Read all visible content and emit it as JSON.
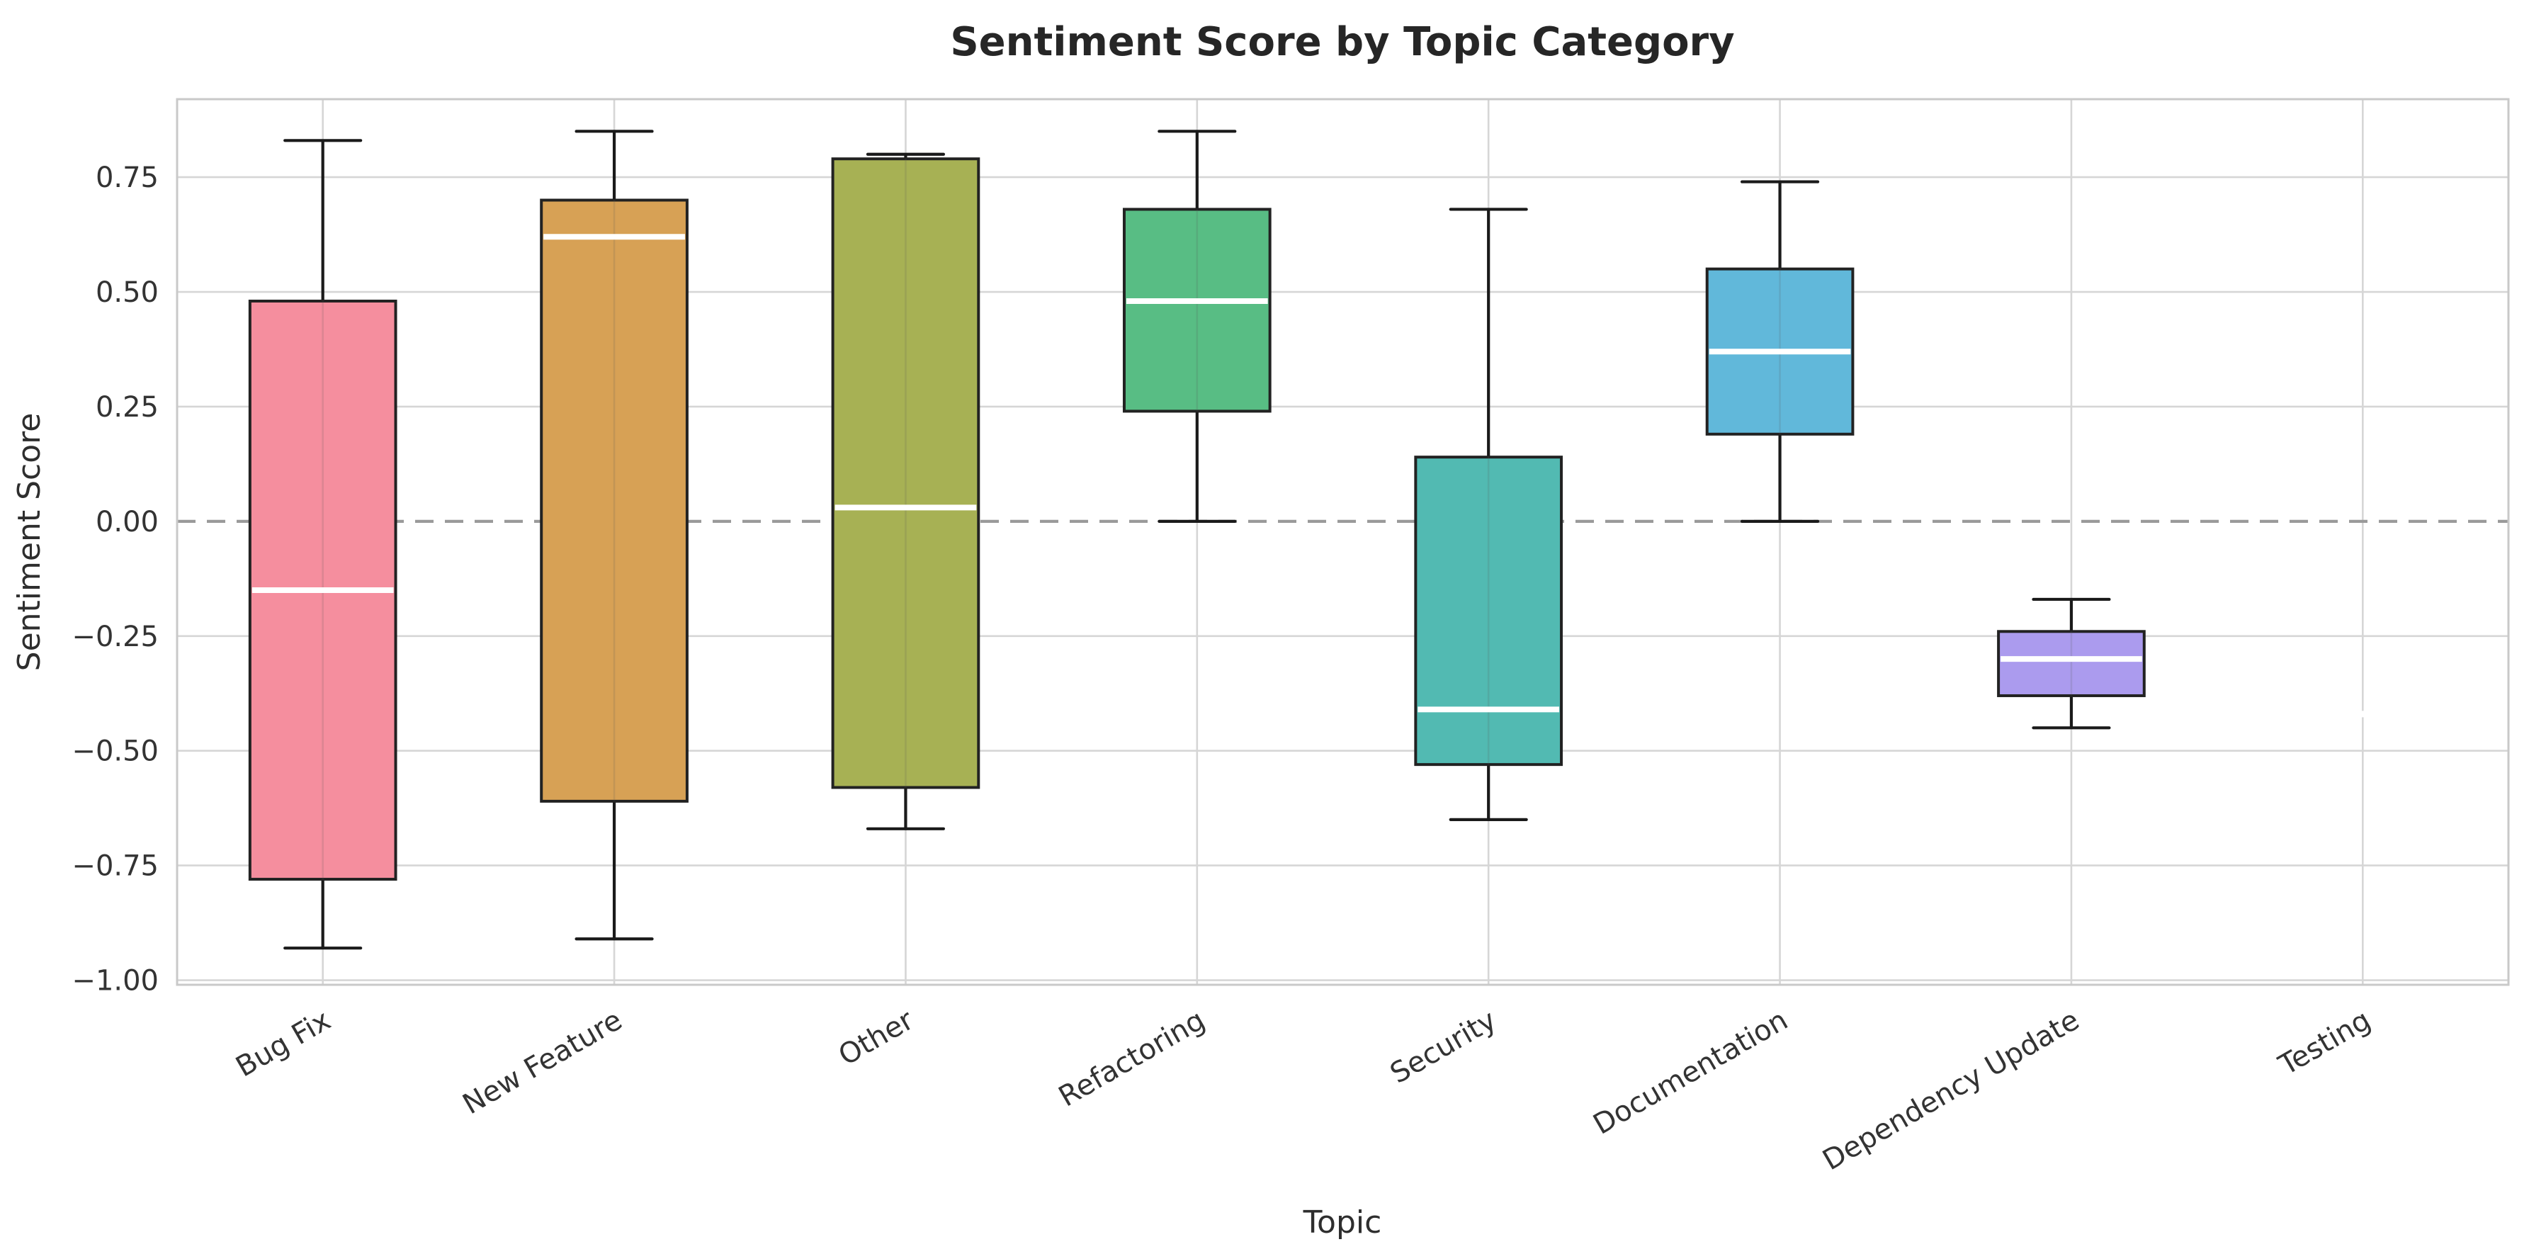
{
  "chart_data": {
    "type": "box",
    "title": "Sentiment Score by Topic Category",
    "xlabel": "Topic",
    "ylabel": "Sentiment Score",
    "ylim": [
      -1.01,
      0.92
    ],
    "grid": true,
    "legend": "none",
    "yticks": [
      0.75,
      0.5,
      0.25,
      0,
      -0.25,
      -0.5,
      -0.75,
      -1.0
    ],
    "ytick_labels": [
      "0.75",
      "0.50",
      "0.25",
      "0.00",
      "−0.25",
      "−0.50",
      "−0.75",
      "−1.00"
    ],
    "zero_line": {
      "value": 0,
      "style": "dashed",
      "color": "#9a9a9a"
    },
    "categories": [
      "Bug Fix",
      "New Feature",
      "Other",
      "Refactoring",
      "Security",
      "Documentation",
      "Dependency Update",
      "Testing"
    ],
    "boxes": [
      {
        "category": "Bug Fix",
        "whisker_low": -0.93,
        "q1": -0.78,
        "median": -0.15,
        "q3": 0.48,
        "whisker_high": 0.83,
        "color": "#f58e9e"
      },
      {
        "category": "New Feature",
        "whisker_low": -0.91,
        "q1": -0.61,
        "median": 0.62,
        "q3": 0.7,
        "whisker_high": 0.85,
        "color": "#d7a155"
      },
      {
        "category": "Other",
        "whisker_low": -0.67,
        "q1": -0.58,
        "median": 0.03,
        "q3": 0.79,
        "whisker_high": 0.8,
        "color": "#a7b154"
      },
      {
        "category": "Refactoring",
        "whisker_low": 0.0,
        "q1": 0.24,
        "median": 0.48,
        "q3": 0.68,
        "whisker_high": 0.85,
        "color": "#58bd84"
      },
      {
        "category": "Security",
        "whisker_low": -0.65,
        "q1": -0.53,
        "median": -0.41,
        "q3": 0.14,
        "whisker_high": 0.68,
        "color": "#52bab2"
      },
      {
        "category": "Documentation",
        "whisker_low": 0.0,
        "q1": 0.19,
        "median": 0.37,
        "q3": 0.55,
        "whisker_high": 0.74,
        "color": "#61b8da"
      },
      {
        "category": "Dependency Update",
        "whisker_low": -0.45,
        "q1": -0.38,
        "median": -0.3,
        "q3": -0.24,
        "whisker_high": -0.17,
        "color": "#ab9bee"
      },
      {
        "category": "Testing",
        "whisker_low": -0.42,
        "q1": -0.42,
        "median": -0.42,
        "q3": -0.42,
        "whisker_high": -0.42,
        "color": "#f07fd5"
      }
    ],
    "colors": {
      "background": "#ffffff",
      "gridline": "#d6d6d6",
      "spine": "#c9c9c9",
      "box_edge": "#222222",
      "median_line": "#ffffff",
      "whisker": "#1a1a1a"
    }
  }
}
